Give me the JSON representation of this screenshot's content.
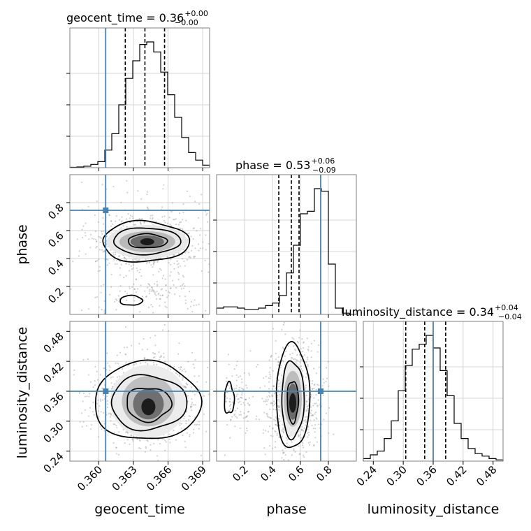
{
  "chart_data": {
    "type": "corner",
    "parameters": [
      {
        "name": "geocent_time",
        "xlabel": "geocent_time",
        "ylabel": "",
        "title_parts": {
          "lhs": "geocent_time = 0.36",
          "up": "+0.00",
          "down": "−0.00"
        },
        "range": [
          0.3575,
          0.3696
        ],
        "ticks": [
          0.36,
          0.363,
          0.366,
          0.369
        ],
        "tick_labels": [
          "0.360",
          "0.363",
          "0.366",
          "0.369"
        ],
        "truth": 0.3606,
        "quantiles": [
          0.3623,
          0.364,
          0.3657
        ],
        "hist": [
          0.003,
          0.006,
          0.012,
          0.026,
          0.048,
          0.14,
          0.27,
          0.5,
          0.71,
          0.85,
          0.98,
          1.0,
          0.92,
          0.76,
          0.58,
          0.4,
          0.24,
          0.12,
          0.06,
          0.02
        ]
      },
      {
        "name": "phase",
        "xlabel": "phase",
        "ylabel": "phase",
        "title_parts": {
          "lhs": "phase = 0.53",
          "up": "+0.06",
          "down": "−0.09"
        },
        "range": [
          0.0,
          1.0
        ],
        "ticks": [
          0.2,
          0.4,
          0.6,
          0.8
        ],
        "tick_labels": [
          "0.2",
          "0.4",
          "0.6",
          "0.8"
        ],
        "truth": 0.745,
        "quantiles": [
          0.445,
          0.535,
          0.59
        ],
        "hist": [
          0.05,
          0.06,
          0.06,
          0.05,
          0.04,
          0.04,
          0.05,
          0.07,
          0.09,
          0.15,
          0.33,
          0.55,
          0.8,
          0.82,
          1.0,
          0.98,
          0.4,
          0.05,
          0.01,
          0.0
        ]
      },
      {
        "name": "luminosity_distance",
        "xlabel": "luminosity_distance",
        "ylabel": "luminosity_distance",
        "title_parts": {
          "lhs": "luminosity_distance = 0.34",
          "up": "+0.04",
          "down": "−0.04"
        },
        "range": [
          0.22,
          0.5
        ],
        "ticks": [
          0.24,
          0.3,
          0.36,
          0.42,
          0.48
        ],
        "tick_labels": [
          "0.24",
          "0.30",
          "0.36",
          "0.42",
          "0.48"
        ],
        "truth": 0.36,
        "quantiles": [
          0.305,
          0.343,
          0.385
        ],
        "hist": [
          0.02,
          0.05,
          0.08,
          0.18,
          0.32,
          0.56,
          0.76,
          0.89,
          0.93,
          1.0,
          0.9,
          0.72,
          0.52,
          0.3,
          0.18,
          0.1,
          0.06,
          0.04,
          0.02,
          0.01
        ]
      }
    ],
    "contours_2d": [
      {
        "x": "geocent_time",
        "y": "phase",
        "mode_x": 0.3642,
        "mode_y": 0.52
      },
      {
        "x": "geocent_time",
        "y": "luminosity_distance",
        "mode_x": 0.3643,
        "mode_y": 0.34
      },
      {
        "x": "phase",
        "y": "luminosity_distance",
        "mode_x": 0.545,
        "mode_y": 0.345
      }
    ],
    "truth_color": "#4682b4",
    "grid": true
  }
}
